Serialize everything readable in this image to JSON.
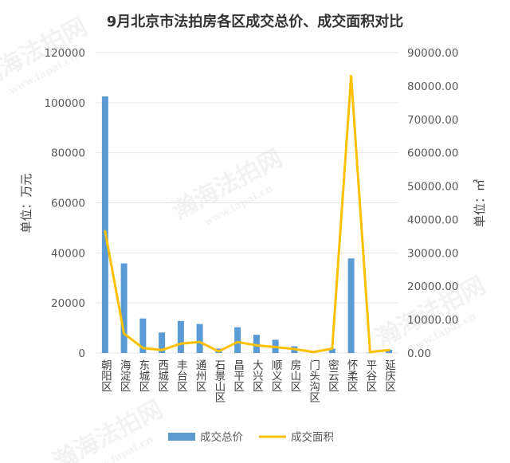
{
  "watermark": {
    "text": "瀚海法拍网",
    "url": "www.fapai.cn"
  },
  "colors": {
    "bar": "#5b9bd5",
    "line": "#ffc000",
    "grid": "#e6e6e6"
  },
  "chart_data": {
    "type": "bar",
    "title": "9月北京市法拍房各区成交总价、成交面积对比",
    "ylabel": "单位：万元",
    "y2label": "单位：㎡",
    "ylim": [
      0,
      120000
    ],
    "y2lim": [
      0,
      90000
    ],
    "yticks": [
      "0",
      "20000",
      "40000",
      "60000",
      "80000",
      "100000",
      "120000"
    ],
    "y2ticks": [
      "0.00",
      "10000.00",
      "20000.00",
      "30000.00",
      "40000.00",
      "50000.00",
      "60000.00",
      "70000.00",
      "80000.00",
      "90000.00"
    ],
    "grid": true,
    "legend_position": "bottom",
    "categories": [
      "朝阳区",
      "海淀区",
      "东城区",
      "西城区",
      "丰台区",
      "通州区",
      "石景山区",
      "昌平区",
      "大兴区",
      "顺义区",
      "房山区",
      "门头沟区",
      "密云区",
      "怀柔区",
      "平谷区",
      "延庆区"
    ],
    "series": [
      {
        "name": "成交总价",
        "type": "bar",
        "axis": "left",
        "values": [
          102500,
          35800,
          13800,
          8200,
          12800,
          11600,
          1800,
          10300,
          7300,
          5300,
          2700,
          300,
          1700,
          37800,
          200,
          1300
        ]
      },
      {
        "name": "成交面积",
        "type": "line",
        "axis": "right",
        "values": [
          36500,
          5800,
          1500,
          900,
          2800,
          3300,
          500,
          3300,
          2300,
          1800,
          1200,
          300,
          1300,
          83000,
          300,
          900
        ]
      }
    ]
  }
}
